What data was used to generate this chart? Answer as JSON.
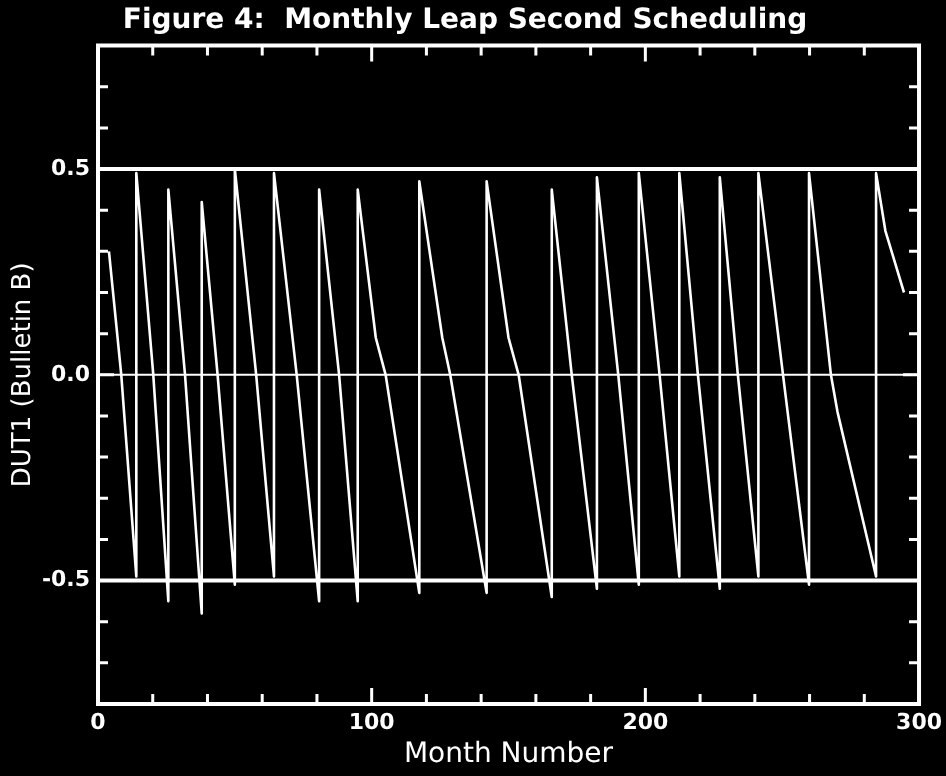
{
  "chart_data": {
    "type": "line",
    "title": "Figure 4:  Monthly Leap Second Scheduling",
    "xlabel": "Month Number",
    "ylabel": "DUT1 (Bulletin B)",
    "xlim": [
      0,
      300
    ],
    "ylim": [
      -0.8,
      0.8
    ],
    "xticks": [
      0,
      {
        "value": 20,
        "label": null
      },
      {
        "value": 40,
        "label": null
      },
      {
        "value": 60,
        "label": null
      },
      {
        "value": 80,
        "label": null
      },
      100,
      {
        "value": 120,
        "label": null
      },
      {
        "value": 140,
        "label": null
      },
      {
        "value": 160,
        "label": null
      },
      {
        "value": 180,
        "label": null
      },
      200,
      {
        "value": 220,
        "label": null
      },
      {
        "value": 240,
        "label": null
      },
      {
        "value": 260,
        "label": null
      },
      {
        "value": 280,
        "label": null
      },
      300
    ],
    "yticks": [
      {
        "value": -0.8,
        "label": null
      },
      {
        "value": -0.7,
        "label": null
      },
      {
        "value": -0.6,
        "label": null
      },
      -0.5,
      {
        "value": -0.4,
        "label": null
      },
      {
        "value": -0.3,
        "label": null
      },
      {
        "value": -0.2,
        "label": null
      },
      {
        "value": -0.1,
        "label": null
      },
      {
        "value": 0,
        "label": "0.0"
      },
      {
        "value": 0.1,
        "label": null
      },
      {
        "value": 0.2,
        "label": null
      },
      {
        "value": 0.3,
        "label": null
      },
      {
        "value": 0.4,
        "label": null
      },
      0.5,
      {
        "value": 0.6,
        "label": null
      },
      {
        "value": 0.7,
        "label": null
      },
      {
        "value": 0.8,
        "label": null
      }
    ],
    "grid": false,
    "legend": false,
    "marker": "none",
    "line_style": "solid",
    "ref_lines": [
      {
        "axis": "y",
        "value": 0.5,
        "color": "#ffffff"
      },
      {
        "axis": "y",
        "value": 0,
        "color": "#ffffff"
      },
      {
        "axis": "y",
        "value": -0.5,
        "color": "#ffffff"
      }
    ],
    "series": [
      {
        "color": "#ffffff",
        "x": [
          4,
          8.5,
          14,
          14,
          20.2,
          25.7,
          25.7,
          31.8,
          37.9,
          37.9,
          43.7,
          50,
          50,
          57.8,
          64.3,
          64.3,
          72.6,
          80.8,
          80.8,
          88.1,
          94.9,
          94.9,
          101.5,
          105.1,
          117.4,
          117.4,
          125.8,
          128.7,
          142,
          142,
          150,
          153.7,
          165.8,
          165.8,
          173.1,
          182.3,
          182.3,
          190.1,
          197.6,
          197.6,
          205.2,
          212.4,
          212.4,
          219.2,
          227.2,
          227.2,
          233.8,
          241.3,
          241.3,
          250.3,
          259.8,
          259.8,
          267.8,
          270.2,
          284.3,
          284.3,
          287.7,
          294.5
        ],
        "values": [
          0.3,
          0,
          -0.49,
          0.49,
          0,
          -0.55,
          0.45,
          0,
          -0.58,
          0.42,
          0,
          -0.51,
          0.5,
          0,
          -0.49,
          0.49,
          0,
          -0.55,
          0.45,
          0,
          -0.55,
          0.45,
          0.09,
          0,
          -0.53,
          0.47,
          0.09,
          0,
          -0.53,
          0.47,
          0.09,
          0,
          -0.54,
          0.45,
          0,
          -0.52,
          0.48,
          0,
          -0.51,
          0.49,
          0,
          -0.49,
          0.49,
          0,
          -0.52,
          0.48,
          0,
          -0.49,
          0.49,
          0,
          -0.51,
          0.49,
          0,
          -0.09,
          -0.49,
          0.49,
          0.35,
          0.2
        ]
      }
    ]
  }
}
